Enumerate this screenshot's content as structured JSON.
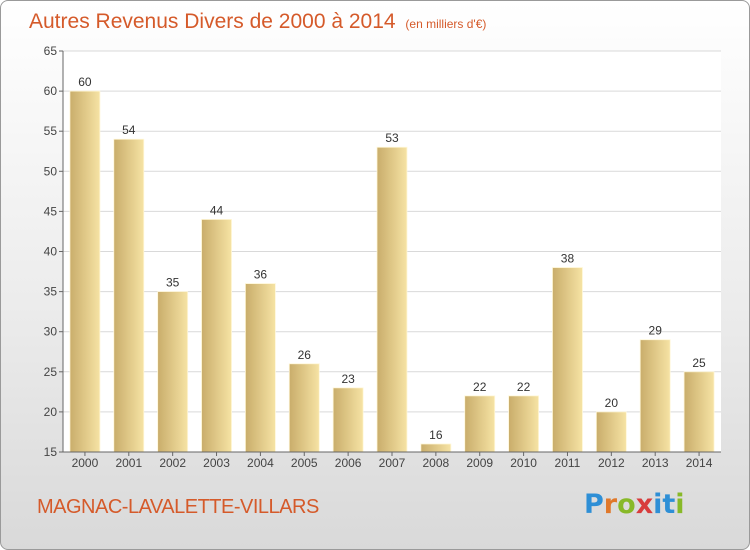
{
  "header": {
    "title": "Autres Revenus Divers de 2000 à 2014",
    "subtitle": "(en milliers d'€)"
  },
  "footer": {
    "commune": "MAGNAC-LAVALETTE-VILLARS",
    "brand": "Proxiti",
    "brand_colors": [
      "#2e8fd6",
      "#e0782a",
      "#88b928",
      "#d83c3c",
      "#2e8fd6",
      "#2e8fd6",
      "#88b928"
    ]
  },
  "colors": {
    "title": "#d55a2a",
    "bar_light": "#f6e3a4",
    "bar_dark": "#c9ad6b",
    "grid": "#d9d9d9",
    "plot_bg": "#ffffff"
  },
  "chart_data": {
    "type": "bar",
    "title": "Autres Revenus Divers de 2000 à 2014",
    "subtitle": "(en milliers d'€)",
    "categories": [
      "2000",
      "2001",
      "2002",
      "2003",
      "2004",
      "2005",
      "2006",
      "2007",
      "2008",
      "2009",
      "2010",
      "2011",
      "2012",
      "2013",
      "2014"
    ],
    "values": [
      60,
      54,
      35,
      44,
      36,
      26,
      23,
      53,
      16,
      22,
      22,
      38,
      20,
      29,
      25
    ],
    "ylim": [
      15,
      65
    ],
    "yticks": [
      15,
      20,
      25,
      30,
      35,
      40,
      45,
      50,
      55,
      60,
      65
    ],
    "grid": true,
    "data_labels": true
  }
}
